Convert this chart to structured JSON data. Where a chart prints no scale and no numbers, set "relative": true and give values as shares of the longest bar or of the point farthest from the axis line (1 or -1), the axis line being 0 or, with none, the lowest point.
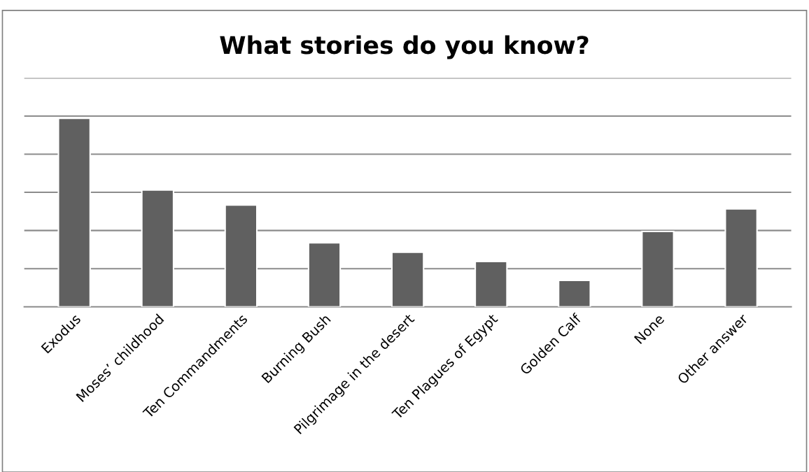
{
  "chart_data": {
    "type": "bar",
    "title": "What stories do you know?",
    "categories": [
      "Exodus",
      "Moses’ childhood",
      "Ten Commandments",
      "Burning Bush",
      "Pilgrimage in the desert",
      "Ten Plagues of Egypt",
      "Golden Calf",
      "None",
      "Other answer"
    ],
    "values": [
      1,
      0.62,
      0.54,
      0.34,
      0.29,
      0.24,
      0.14,
      0.4,
      0.52
    ],
    "color": "#606060",
    "relative": true,
    "grid": "y",
    "legend": false
  }
}
